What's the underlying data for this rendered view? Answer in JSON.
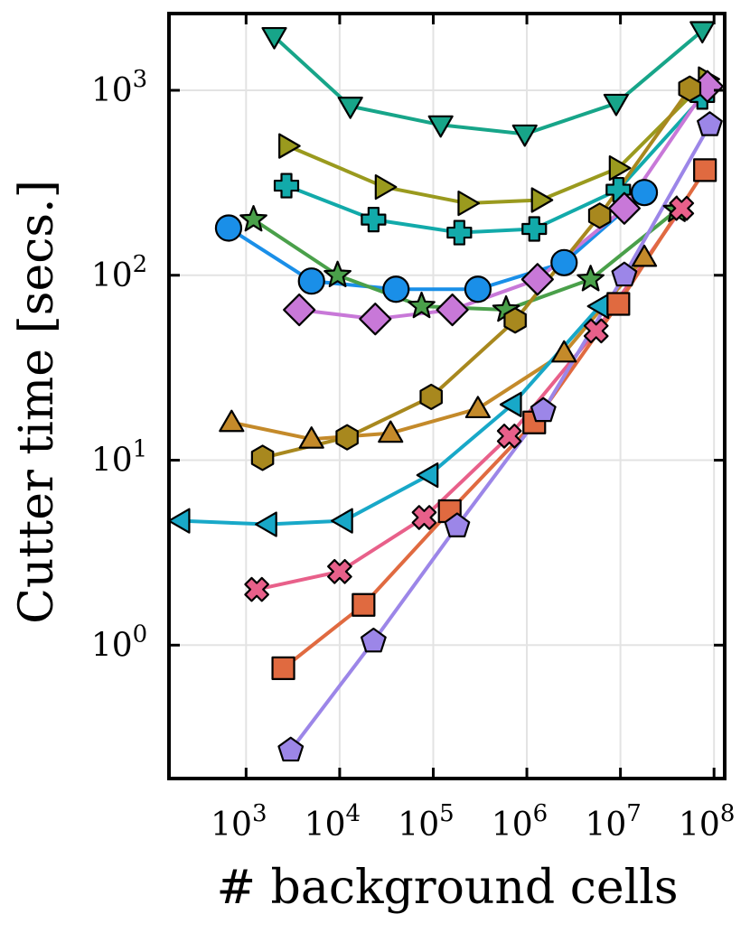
{
  "chart_data": {
    "type": "scatter",
    "title": "",
    "xlabel": "# background cells",
    "ylabel": "Cutter time [secs.]",
    "xscale": "log",
    "yscale": "log",
    "xlim": [
      150,
      130000000
    ],
    "ylim": [
      0.19,
      2600
    ],
    "grid": true,
    "legend": "none",
    "x_ticks": [
      {
        "value": 1000,
        "base": "10",
        "exp": "3"
      },
      {
        "value": 10000,
        "base": "10",
        "exp": "4"
      },
      {
        "value": 100000,
        "base": "10",
        "exp": "5"
      },
      {
        "value": 1000000,
        "base": "10",
        "exp": "6"
      },
      {
        "value": 10000000,
        "base": "10",
        "exp": "7"
      },
      {
        "value": 100000000,
        "base": "10",
        "exp": "8"
      }
    ],
    "y_ticks": [
      {
        "value": 1,
        "base": "10",
        "exp": "0"
      },
      {
        "value": 10,
        "base": "10",
        "exp": "1"
      },
      {
        "value": 100,
        "base": "10",
        "exp": "2"
      },
      {
        "value": 1000,
        "base": "10",
        "exp": "3"
      }
    ],
    "series": [
      {
        "name": "series-1",
        "marker": "triangle-down",
        "color": "#17a589",
        "x": [
          2000,
          13000,
          120000,
          950000,
          9000000,
          75000000
        ],
        "y": [
          1950,
          820,
          650,
          580,
          850,
          2100
        ]
      },
      {
        "name": "series-2",
        "marker": "triangle-right",
        "color": "#9a9a1e",
        "x": [
          2800,
          30000,
          230000,
          1400000,
          9500000,
          85000000
        ],
        "y": [
          500,
          300,
          245,
          255,
          380,
          1150
        ]
      },
      {
        "name": "series-3",
        "marker": "plus",
        "color": "#12aaaa",
        "x": [
          2700,
          23000,
          190000,
          1200000,
          9500000,
          75000000
        ],
        "y": [
          305,
          200,
          170,
          178,
          290,
          920
        ]
      },
      {
        "name": "series-4",
        "marker": "circle",
        "color": "#1a8fe8",
        "x": [
          650,
          5000,
          40000,
          300000,
          2500000,
          18000000
        ],
        "y": [
          180,
          93,
          84,
          84,
          117,
          280
        ]
      },
      {
        "name": "series-5",
        "marker": "star",
        "color": "#4aa04a",
        "x": [
          1200,
          9500,
          75000,
          600000,
          4800000,
          40000000
        ],
        "y": [
          200,
          100,
          68,
          65,
          95,
          225
        ]
      },
      {
        "name": "series-6",
        "marker": "diamond",
        "color": "#c878d8",
        "x": [
          3700,
          24000,
          160000,
          1300000,
          11000000,
          85000000
        ],
        "y": [
          65,
          58,
          65,
          95,
          230,
          1050
        ]
      },
      {
        "name": "series-7",
        "marker": "hexagon",
        "color": "#a8881e",
        "x": [
          1500,
          12000,
          95000,
          750000,
          6000000,
          55000000
        ],
        "y": [
          10.3,
          13.3,
          22,
          57,
          210,
          1020
        ]
      },
      {
        "name": "series-8",
        "marker": "triangle-up",
        "color": "#c48a2a",
        "x": [
          700,
          5000,
          35000,
          300000,
          2500000,
          18000000
        ],
        "y": [
          16,
          13,
          14,
          19,
          38,
          125
        ]
      },
      {
        "name": "series-9",
        "marker": "triangle-left",
        "color": "#18a8c8",
        "x": [
          200,
          1700,
          11000,
          90000,
          700000,
          6000000
        ],
        "y": [
          4.7,
          4.5,
          4.7,
          8.3,
          20,
          68
        ]
      },
      {
        "name": "series-10",
        "marker": "x",
        "color": "#e8608a",
        "x": [
          1300,
          10000,
          80000,
          650000,
          5500000,
          45000000
        ],
        "y": [
          2.0,
          2.5,
          4.9,
          13.5,
          50,
          230
        ]
      },
      {
        "name": "series-11",
        "marker": "square",
        "color": "#e06a40",
        "x": [
          2500,
          18000,
          150000,
          1200000,
          9500000,
          80000000
        ],
        "y": [
          0.75,
          1.65,
          5.3,
          16,
          70,
          370
        ]
      },
      {
        "name": "series-12",
        "marker": "pentagon",
        "color": "#9c86e8",
        "x": [
          3000,
          23000,
          180000,
          1500000,
          11000000,
          90000000
        ],
        "y": [
          0.27,
          1.05,
          4.4,
          18.5,
          100,
          650
        ]
      }
    ]
  }
}
